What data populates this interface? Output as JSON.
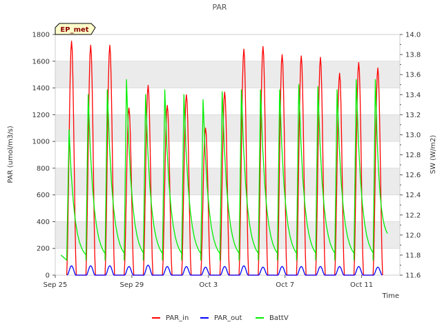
{
  "chart_data": {
    "type": "line",
    "title": "PAR",
    "badge": "EP_met",
    "xlabel": "Time",
    "ylabel": "PAR (umol/m3/s)",
    "y2label": "SW (W/m2)",
    "x_ticks": [
      {
        "label": "Sep 25",
        "day": 0
      },
      {
        "label": "Sep 29",
        "day": 4
      },
      {
        "label": "Oct 3",
        "day": 8
      },
      {
        "label": "Oct 7",
        "day": 12
      },
      {
        "label": "Oct 11",
        "day": 16
      }
    ],
    "xlim_days": [
      0,
      18
    ],
    "ylim": [
      0,
      1800
    ],
    "yticks": [
      0,
      200,
      400,
      600,
      800,
      1000,
      1200,
      1400,
      1600,
      1800
    ],
    "y2lim": [
      11.6,
      14.0
    ],
    "y2ticks": [
      "11.6",
      "11.8",
      "12.0",
      "12.2",
      "12.4",
      "12.6",
      "12.8",
      "13.0",
      "13.2",
      "13.4",
      "13.6",
      "13.8",
      "14.0"
    ],
    "grid": true,
    "legend_position": "bottom-center",
    "colors": {
      "PAR_in": "#ff0000",
      "PAR_out": "#0000ff",
      "BattV": "#00ee00",
      "band": "#ebebeb",
      "badge_bg": "#ffffcc"
    },
    "series": [
      {
        "name": "PAR_in",
        "axis": "left",
        "peak_day": [
          0.85,
          1.85,
          2.85,
          3.85,
          4.85,
          5.85,
          6.85,
          7.85,
          8.85,
          9.85,
          10.85,
          11.85,
          12.85,
          13.85,
          14.85,
          15.85,
          16.85
        ],
        "peak_value": [
          1750,
          1720,
          1720,
          1250,
          1420,
          1270,
          1350,
          1100,
          1370,
          1690,
          1710,
          1650,
          1640,
          1630,
          1510,
          1590,
          1550
        ]
      },
      {
        "name": "PAR_out",
        "axis": "left",
        "peak_day": [
          0.85,
          1.85,
          2.85,
          3.85,
          4.85,
          5.85,
          6.85,
          7.85,
          8.85,
          9.85,
          10.85,
          11.85,
          12.85,
          13.85,
          14.85,
          15.85,
          16.85
        ],
        "peak_value": [
          70,
          70,
          70,
          65,
          75,
          65,
          65,
          60,
          65,
          70,
          60,
          65,
          65,
          65,
          65,
          65,
          60
        ]
      },
      {
        "name": "BattV",
        "axis": "right",
        "start": {
          "day": 0.3,
          "value": 11.8
        },
        "peak_day": [
          0.72,
          1.72,
          2.72,
          3.72,
          4.72,
          5.72,
          6.72,
          7.72,
          8.72,
          9.72,
          10.72,
          11.72,
          12.72,
          13.72,
          14.72,
          15.72,
          16.72
        ],
        "peak_value": [
          13.05,
          13.4,
          13.45,
          13.55,
          13.4,
          13.45,
          13.4,
          13.35,
          13.43,
          13.45,
          13.45,
          13.45,
          13.5,
          13.48,
          13.45,
          13.55,
          13.55
        ],
        "trough_value": [
          11.75,
          11.75,
          11.75,
          11.75,
          11.75,
          11.75,
          11.75,
          11.75,
          11.75,
          11.75,
          11.75,
          11.75,
          11.75,
          11.75,
          11.75,
          11.75,
          11.75
        ],
        "end": {
          "day": 17.35,
          "value": 11.95
        }
      }
    ]
  }
}
